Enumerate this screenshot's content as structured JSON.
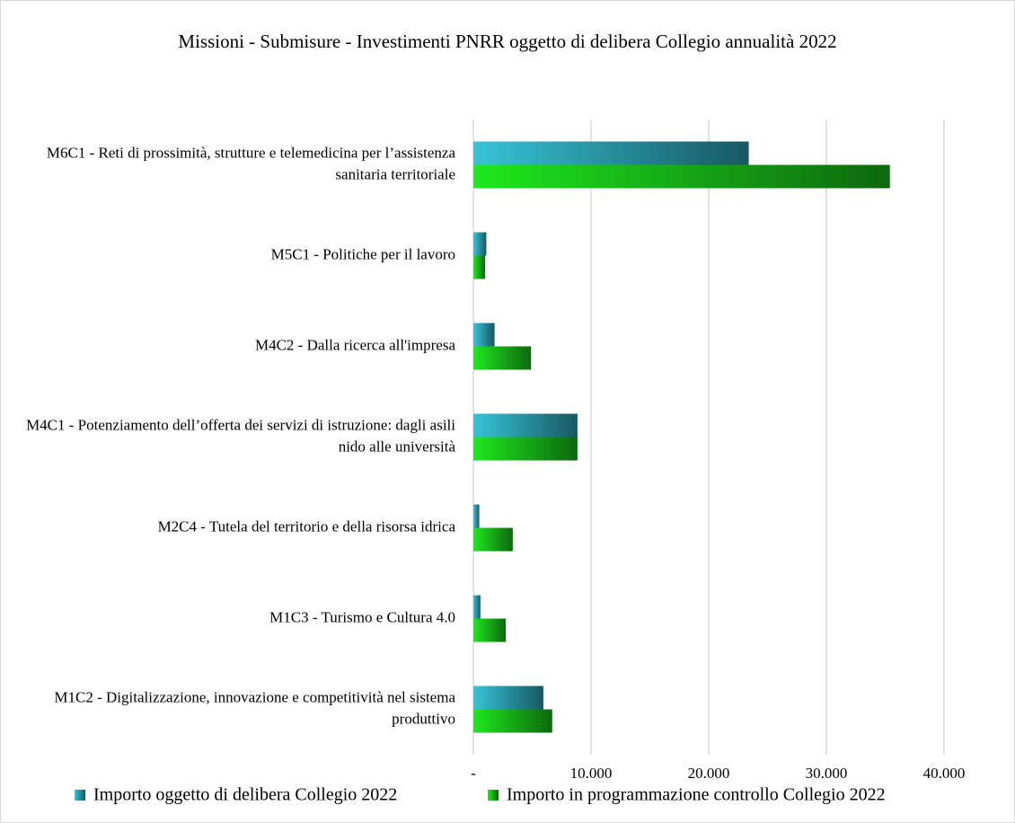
{
  "chart_data": {
    "type": "hbar",
    "title": "Missioni - Submisure - Investimenti PNRR oggetto di delibera Collegio annualità 2022",
    "categories": [
      "M6C1 - Reti di prossimità, strutture e telemedicina per l’assistenza sanitaria territoriale",
      "M5C1 - Politiche per il lavoro",
      "M4C2 - Dalla ricerca all'impresa",
      "M4C1 - Potenziamento dell’offerta dei servizi di istruzione: dagli asili nido alle università",
      "M2C4  - Tutela del territorio e della risorsa idrica",
      "M1C3 - Turismo e Cultura 4.0",
      "M1C2 - Digitalizzazione, innovazione e competitività nel sistema produttivo"
    ],
    "series": [
      {
        "name": "Importo oggetto di delibera Collegio 2022",
        "color": "#36c4d8",
        "values": [
          23400,
          1100,
          1800,
          8850,
          500,
          600,
          5950
        ]
      },
      {
        "name": "Importo in programmazione controllo Collegio 2022",
        "color": "#1ee81e",
        "values": [
          35400,
          1000,
          4900,
          8850,
          3350,
          2750,
          6700
        ]
      }
    ],
    "xlim": [
      0,
      40000
    ],
    "xticks": [
      {
        "value": 0,
        "label": "-"
      },
      {
        "value": 10000,
        "label": "10.000"
      },
      {
        "value": 20000,
        "label": "20.000"
      },
      {
        "value": 30000,
        "label": "30.000"
      },
      {
        "value": 40000,
        "label": "40.000"
      }
    ],
    "grid": true,
    "legend": "bottom"
  }
}
